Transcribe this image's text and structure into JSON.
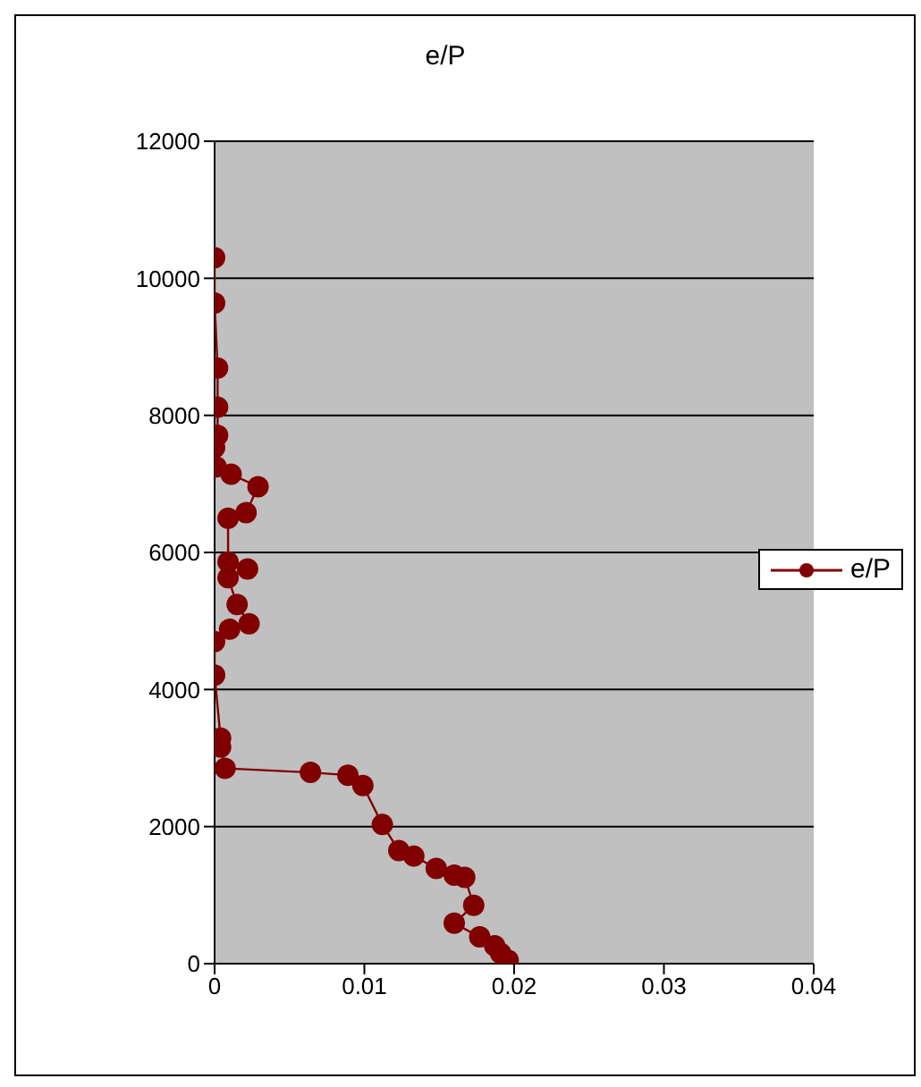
{
  "chart_data": {
    "type": "line",
    "title": "e/P",
    "x": [
      0,
      0,
      0.0002,
      0.0002,
      0.0002,
      0,
      0.0001,
      0.0011,
      0.0029,
      0.0021,
      0.0009,
      0.0009,
      0.0022,
      0.0009,
      0.0015,
      0.0023,
      0.001,
      0,
      0,
      0.0004,
      0.0004,
      0.0007,
      0.0064,
      0.0089,
      0.0099,
      0.0112,
      0.0123,
      0.0133,
      0.0148,
      0.016,
      0.0167,
      0.0173,
      0.016,
      0.0177,
      0.0187,
      0.0191,
      0.0196
    ],
    "series": [
      {
        "name": "e/P",
        "color": "#800000",
        "values": [
          10300,
          9640,
          8690,
          8120,
          7710,
          7530,
          7250,
          7140,
          6960,
          6580,
          6500,
          5860,
          5760,
          5630,
          5240,
          4960,
          4880,
          4700,
          4210,
          3290,
          3160,
          2850,
          2790,
          2750,
          2600,
          2030,
          1650,
          1570,
          1390,
          1290,
          1260,
          850,
          590,
          390,
          260,
          150,
          50
        ]
      }
    ],
    "xlim": [
      0,
      0.04
    ],
    "xticks": [
      0,
      0.01,
      0.02,
      0.03,
      0.04
    ],
    "ylim": [
      0,
      12000
    ],
    "yticks": [
      0,
      2000,
      4000,
      6000,
      8000,
      10000,
      12000
    ],
    "grid": "y",
    "legend": "right",
    "marker": "circle",
    "line_style": "solid"
  }
}
